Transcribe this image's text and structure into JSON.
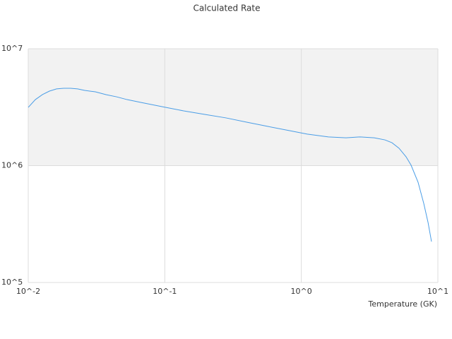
{
  "chart_data": {
    "type": "line",
    "title": "Calculated Rate",
    "x_label": "Temperature (GK)",
    "log_x": true,
    "log_y": true,
    "grid": true,
    "xlim": [
      0.01,
      10
    ],
    "ylim": [
      100000,
      10000000
    ],
    "xticks": [
      {
        "value": 0.01,
        "label": "10^-2"
      },
      {
        "value": 0.1,
        "label": "10^-1"
      },
      {
        "value": 1,
        "label": "10^0"
      },
      {
        "value": 10,
        "label": "10^1"
      }
    ],
    "yticks": [
      {
        "value": 100000,
        "label": "10^5"
      },
      {
        "value": 1000000,
        "label": "10^6"
      },
      {
        "value": 10000000,
        "label": "10^7"
      }
    ],
    "x": [
      0.01,
      0.01127,
      0.0127,
      0.01429,
      0.0161,
      0.01815,
      0.0204,
      0.023,
      0.0259,
      0.031,
      0.0371,
      0.0443,
      0.053,
      0.0672,
      0.0961,
      0.1374,
      0.1963,
      0.2807,
      0.401,
      0.5735,
      0.82,
      1.104,
      1.579,
      2.126,
      2.698,
      3.42,
      4.09,
      4.61,
      5.19,
      5.85,
      6.36,
      7.16,
      7.88,
      8.47,
      8.98
    ],
    "series": [
      {
        "color": "#4a9de6",
        "values": [
          3150000,
          3670000,
          4050000,
          4340000,
          4530000,
          4590000,
          4590000,
          4530000,
          4400000,
          4280000,
          4050000,
          3880000,
          3670000,
          3470000,
          3190000,
          2940000,
          2740000,
          2560000,
          2350000,
          2160000,
          1990000,
          1860000,
          1760000,
          1730000,
          1760000,
          1730000,
          1660000,
          1570000,
          1410000,
          1190000,
          1010000,
          721000,
          475000,
          327000,
          224000
        ]
      }
    ]
  }
}
